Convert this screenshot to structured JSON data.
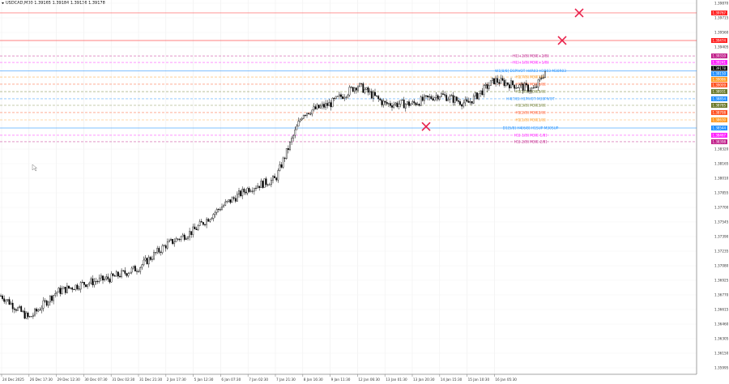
{
  "header": {
    "title": "USDCAD,M30  1.39165 1.39184 1.39136 1.39178"
  },
  "colors": {
    "candle": "#000000",
    "grid": "#eeeeee",
    "marker": "#e8204a",
    "axis": "#888888"
  },
  "chart_data": {
    "type": "candlestick",
    "symbol": "USDCAD",
    "timeframe": "M30",
    "ohlc_last": {
      "open": 1.39165,
      "high": 1.39184,
      "low": 1.39136,
      "close": 1.39178
    },
    "x_ticks": [
      "24 Dec 2025",
      "26 Dec 17:30",
      "29 Dec 12:30",
      "30 Dec 07:30",
      "31 Dec 02:30",
      "31 Dec 21:30",
      "2 Jan 17:30",
      "5 Jan 12:30",
      "6 Jan 07:30",
      "7 Jan 02:30",
      "7 Jan 21:30",
      "8 Jan 16:30",
      "9 Jan 11:30",
      "12 Jan 06:30",
      "13 Jan 01:30",
      "13 Jan 20:30",
      "14 Jan 15:30",
      "15 Jan 10:30",
      "16 Jan 05:30"
    ],
    "y_ticks": [
      "1.39870",
      "1.39715",
      "1.39560",
      "1.39405",
      "1.38320",
      "1.38165",
      "1.38010",
      "1.37855",
      "1.37700",
      "1.37545",
      "1.37390",
      "1.37235",
      "1.37080",
      "1.36925",
      "1.36770",
      "1.36615",
      "1.36460",
      "1.36305",
      "1.36150",
      "1.35995"
    ],
    "ylim": [
      1.35995,
      1.3987
    ],
    "grid": true,
    "close_path": [
      {
        "x": "24 Dec 2025",
        "y": 1.3676
      },
      {
        "x": "26 Dec 17:30",
        "y": 1.3652
      },
      {
        "x": "29 Dec 12:30",
        "y": 1.368
      },
      {
        "x": "30 Dec 07:30",
        "y": 1.3689
      },
      {
        "x": "31 Dec 02:30",
        "y": 1.3695
      },
      {
        "x": "31 Dec 21:30",
        "y": 1.3706
      },
      {
        "x": "2 Jan 17:30",
        "y": 1.373
      },
      {
        "x": "5 Jan 12:30",
        "y": 1.3745
      },
      {
        "x": "6 Jan 07:30",
        "y": 1.377
      },
      {
        "x": "7 Jan 02:30",
        "y": 1.379
      },
      {
        "x": "7 Jan 21:30",
        "y": 1.38
      },
      {
        "x": "8 Jan 16:30",
        "y": 1.387
      },
      {
        "x": "9 Jan 11:30",
        "y": 1.388
      },
      {
        "x": "12 Jan 06:30",
        "y": 1.39
      },
      {
        "x": "13 Jan 01:30",
        "y": 1.388
      },
      {
        "x": "13 Jan 20:30",
        "y": 1.388
      },
      {
        "x": "14 Jan 15:30",
        "y": 1.389
      },
      {
        "x": "15 Jan 10:30",
        "y": 1.388
      },
      {
        "x": "16 Jan 05:30",
        "y": 1.3905
      },
      {
        "x": "16 Jan 22:00",
        "y": 1.3895
      },
      {
        "x": "17 Jan 07:00",
        "y": 1.39178
      }
    ],
    "levels": [
      {
        "label": "",
        "price": "1.39767",
        "color": "#ff2020",
        "style": "solid"
      },
      {
        "label": "",
        "price": "1.39474",
        "color": "#ff2020",
        "style": "solid"
      },
      {
        "label": "H1[+2/8] M30[+2/8]",
        "price": "1.39310",
        "color": "#c0208a",
        "style": "dash"
      },
      {
        "label": "H1[+1/8] M30[+1/8]",
        "price": "1.39241",
        "color": "#ff20ff",
        "style": "dash"
      },
      {
        "label": "",
        "price": "1.39178",
        "color": "#000000",
        "style": "none"
      },
      {
        "label": "W1[8/8] D1PIVOT H4R03 H1R03 M30R03",
        "price": "1.39150",
        "color": "#2090ff",
        "style": "solid"
      },
      {
        "label": "H1[7/8] M30[7/8]",
        "price": "1.39086",
        "color": "#ff9a20",
        "style": "dash"
      },
      {
        "label": "H1[6/8] M30[6/8]",
        "price": "1.39009",
        "color": "#ff5020",
        "style": "dash"
      },
      {
        "label": "H1[5/8] M30[5/8]",
        "price": "1.38931",
        "color": "#6b7a2a",
        "style": "dash"
      },
      {
        "label": "H4[7/8] H1PIVOT M30PIVOT",
        "price": "1.38854",
        "color": "#2090ff",
        "style": "dash"
      },
      {
        "label": "H1[3/8] M30[3/8]",
        "price": "1.38785",
        "color": "#6b7a2a",
        "style": "dash"
      },
      {
        "label": "H1[2/8] M30[2/8]",
        "price": "1.38708",
        "color": "#ff5020",
        "style": "dash"
      },
      {
        "label": "H1[1/8] M30[1/8]",
        "price": "1.38630",
        "color": "#ff9a20",
        "style": "dash"
      },
      {
        "label": "D1[5/8] H4[6/8] H1SUP M30SUP",
        "price": "1.38544",
        "color": "#2090ff",
        "style": "solid"
      },
      {
        "label": "H1[-1/8] M30[-1/8]",
        "price": "1.38467",
        "color": "#ff20ff",
        "style": "dash"
      },
      {
        "label": "H1[-2/8] M30[-2/8]",
        "price": "1.38398",
        "color": "#c0208a",
        "style": "dash"
      }
    ],
    "markers": [
      {
        "x": "17 Jan 14:00",
        "price": 1.39767,
        "icon": "x-cross"
      },
      {
        "x": "17 Jan 03:30",
        "price": 1.39474,
        "icon": "x-cross"
      },
      {
        "x": "13 Jan 01:30",
        "price": 1.3856,
        "icon": "x-cross"
      }
    ]
  }
}
